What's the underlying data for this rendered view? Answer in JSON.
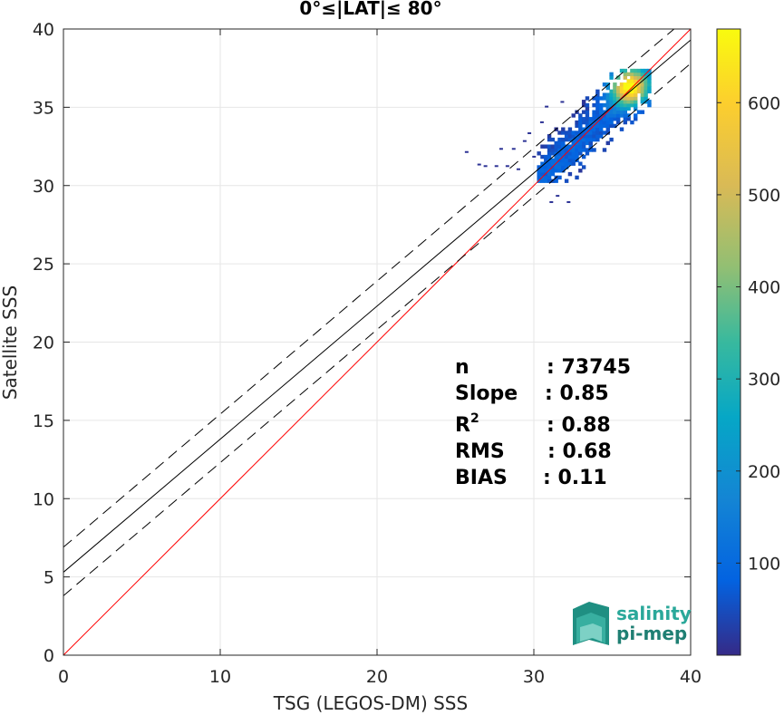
{
  "chart_data": {
    "type": "heatmap",
    "title": "0°≤|LAT|≤ 80°",
    "xlabel": "TSG (LEGOS-DM) SSS",
    "ylabel": "Satellite SSS",
    "xlim": [
      0,
      40
    ],
    "ylim": [
      0,
      40
    ],
    "x_ticks": [
      "0",
      "10",
      "20",
      "30",
      "40"
    ],
    "y_ticks": [
      "0",
      "5",
      "10",
      "15",
      "20",
      "25",
      "30",
      "35",
      "40"
    ],
    "grid": true,
    "colorbar": {
      "range": [
        0,
        680
      ],
      "ticks": [
        "100",
        "200",
        "300",
        "400",
        "500",
        "600"
      ],
      "colormap": "parula"
    },
    "lines": [
      {
        "kind": "identity",
        "color": "#ff0000",
        "style": "solid",
        "intercept": 0,
        "slope": 1
      },
      {
        "kind": "regression",
        "color": "#000000",
        "style": "solid",
        "intercept": 5.3,
        "slope": 0.85
      },
      {
        "kind": "regression-upper",
        "color": "#000000",
        "style": "dashed",
        "intercept": 6.9,
        "slope": 0.85
      },
      {
        "kind": "regression-lower",
        "color": "#000000",
        "style": "dashed",
        "intercept": 3.8,
        "slope": 0.85
      }
    ],
    "density": {
      "x_range": [
        30.2,
        37.3
      ],
      "y_range": [
        30.2,
        37.4
      ],
      "peak": [
        36.0,
        36.2
      ],
      "peak_count": 680
    },
    "stats": [
      {
        "label": "n",
        "value": ": 73745"
      },
      {
        "label": "Slope",
        "value": ": 0.85"
      },
      {
        "label": "R",
        "sup": "2",
        "value": ": 0.88"
      },
      {
        "label": "RMS",
        "value": ": 0.68"
      },
      {
        "label": "BIAS",
        "value": ": 0.11"
      }
    ]
  },
  "logo": {
    "line1": "salinity",
    "line2": "pi-mep",
    "color": "#2aa89a"
  }
}
